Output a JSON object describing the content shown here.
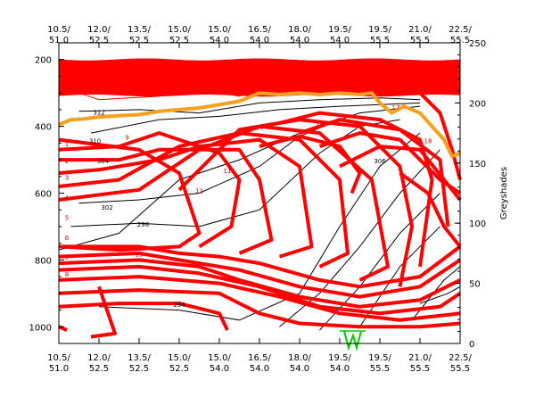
{
  "chart_data": {
    "type": "line",
    "x_tick_labels": [
      {
        "top": "10.5/",
        "bottom": "51.0"
      },
      {
        "top": "12.0/",
        "bottom": "52.5"
      },
      {
        "top": "13.5/",
        "bottom": "52.5"
      },
      {
        "top": "15.0/",
        "bottom": "52.5"
      },
      {
        "top": "15.0/",
        "bottom": "54.0"
      },
      {
        "top": "16.5/",
        "bottom": "54.0"
      },
      {
        "top": "18.0/",
        "bottom": "54.0"
      },
      {
        "top": "19.5/",
        "bottom": "54.0"
      },
      {
        "top": "19.5/",
        "bottom": "55.5"
      },
      {
        "top": "21.0/",
        "bottom": "55.5"
      },
      {
        "top": "22.5/",
        "bottom": "55.5"
      }
    ],
    "y_left": {
      "ticks": [
        200,
        400,
        600,
        800,
        1000
      ],
      "range": [
        1050,
        150
      ],
      "reversed": true
    },
    "y_right": {
      "title": "Greyshades",
      "ticks": [
        0,
        50,
        100,
        150,
        200,
        250
      ],
      "range": [
        0,
        250
      ]
    },
    "grid": false,
    "colors": {
      "isotach": "#ff0000",
      "isentrope": "#000000",
      "tropopause": "#f4a020",
      "surface_marker": "#00cc00"
    },
    "red_contour_labels": [
      "1",
      "2",
      "3",
      "4",
      "5",
      "6",
      "7",
      "8",
      "9",
      "10",
      "11",
      "12",
      "13",
      "14",
      "15",
      "16",
      "17",
      "18"
    ],
    "black_contour_labels": [
      "294",
      "298",
      "302",
      "304",
      "306",
      "310",
      "312"
    ],
    "series": [
      {
        "name": "",
        "style": "orange-thick",
        "points": [
          [
            0.0,
            395
          ],
          [
            0.3,
            380
          ],
          [
            0.6,
            378
          ],
          [
            1.0,
            372
          ],
          [
            1.5,
            368
          ],
          [
            2.0,
            365
          ],
          [
            2.5,
            355
          ],
          [
            3.0,
            350
          ],
          [
            3.5,
            345
          ],
          [
            4.0,
            335
          ],
          [
            4.5,
            325
          ],
          [
            5.0,
            300
          ],
          [
            5.5,
            305
          ],
          [
            6.0,
            300
          ],
          [
            6.5,
            305
          ],
          [
            7.0,
            300
          ],
          [
            7.5,
            305
          ],
          [
            7.8,
            300
          ],
          [
            8.0,
            330
          ],
          [
            8.3,
            360
          ],
          [
            8.6,
            340
          ],
          [
            9.0,
            360
          ],
          [
            9.3,
            400
          ],
          [
            9.6,
            440
          ],
          [
            9.8,
            490
          ],
          [
            10.0,
            480
          ]
        ]
      }
    ]
  }
}
